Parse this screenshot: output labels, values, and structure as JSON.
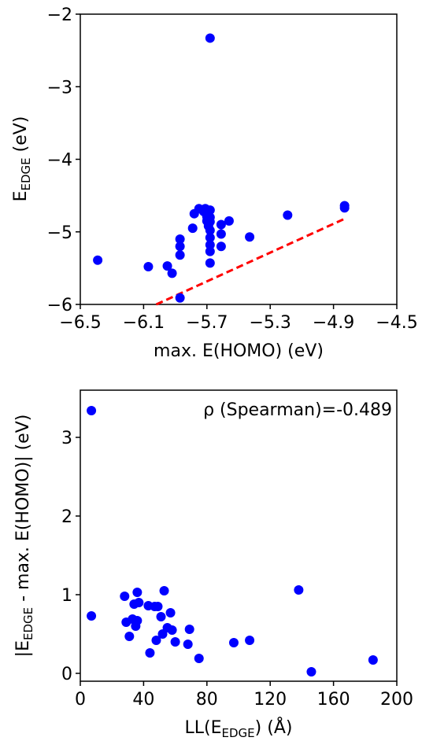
{
  "chart_data": [
    {
      "type": "scatter",
      "xlim": [
        -6.5,
        -4.5
      ],
      "ylim": [
        -6,
        -2
      ],
      "xticks": [
        "−6.5",
        "−6.1",
        "−5.7",
        "−5.3",
        "−4.9",
        "−4.5"
      ],
      "xtick_values": [
        -6.5,
        -6.1,
        -5.7,
        -5.3,
        -4.9,
        -4.5
      ],
      "yticks": [
        "−6",
        "−5",
        "−4",
        "−3",
        "−2"
      ],
      "ytick_values": [
        -6,
        -5,
        -4,
        -3,
        -2
      ],
      "xlabel": "max. E(HOMO) (eV)",
      "ylabel_main": "E",
      "ylabel_sub": "EDGE",
      "ylabel_rest": " (eV)",
      "grid": false,
      "marker_color": "#0000ff",
      "line_color": "#ff0000",
      "points": [
        {
          "x": -5.68,
          "y": -2.33
        },
        {
          "x": -6.39,
          "y": -5.39
        },
        {
          "x": -6.07,
          "y": -5.48
        },
        {
          "x": -5.95,
          "y": -5.47
        },
        {
          "x": -5.92,
          "y": -5.57
        },
        {
          "x": -5.87,
          "y": -5.91
        },
        {
          "x": -5.87,
          "y": -5.32
        },
        {
          "x": -5.87,
          "y": -5.2
        },
        {
          "x": -5.87,
          "y": -5.1
        },
        {
          "x": -5.79,
          "y": -4.95
        },
        {
          "x": -5.78,
          "y": -4.75
        },
        {
          "x": -5.75,
          "y": -4.68
        },
        {
          "x": -5.72,
          "y": -4.72
        },
        {
          "x": -5.71,
          "y": -4.68
        },
        {
          "x": -5.7,
          "y": -4.79
        },
        {
          "x": -5.7,
          "y": -4.85
        },
        {
          "x": -5.69,
          "y": -4.92
        },
        {
          "x": -5.68,
          "y": -4.7
        },
        {
          "x": -5.68,
          "y": -4.8
        },
        {
          "x": -5.68,
          "y": -4.86
        },
        {
          "x": -5.68,
          "y": -4.98
        },
        {
          "x": -5.68,
          "y": -5.08
        },
        {
          "x": -5.68,
          "y": -5.18
        },
        {
          "x": -5.68,
          "y": -5.27
        },
        {
          "x": -5.68,
          "y": -5.43
        },
        {
          "x": -5.61,
          "y": -4.9
        },
        {
          "x": -5.61,
          "y": -5.03
        },
        {
          "x": -5.61,
          "y": -5.2
        },
        {
          "x": -5.56,
          "y": -4.85
        },
        {
          "x": -5.43,
          "y": -5.07
        },
        {
          "x": -5.19,
          "y": -4.77
        },
        {
          "x": -4.83,
          "y": -4.64
        },
        {
          "x": -4.83,
          "y": -4.67
        }
      ],
      "line": [
        {
          "x": -6.02,
          "y": -6.0
        },
        {
          "x": -4.83,
          "y": -4.82
        }
      ]
    },
    {
      "type": "scatter",
      "xlim": [
        0,
        200
      ],
      "ylim": [
        -0.1,
        3.6
      ],
      "xticks": [
        "0",
        "40",
        "80",
        "120",
        "160",
        "200"
      ],
      "xtick_values": [
        0,
        40,
        80,
        120,
        160,
        200
      ],
      "yticks": [
        "0",
        "1",
        "2",
        "3"
      ],
      "ytick_values": [
        0,
        1,
        2,
        3
      ],
      "xlabel_main": "LL(E",
      "xlabel_sub": "EDGE",
      "xlabel_rest": ") (Å)",
      "ylabel_pre": "|E",
      "ylabel_sub": "EDGE",
      "ylabel_rest": " - max. E(HOMO)| (eV)",
      "annotation": "ρ (Spearman)=-0.489",
      "grid": false,
      "marker_color": "#0000ff",
      "points": [
        {
          "x": 7,
          "y": 3.34
        },
        {
          "x": 7,
          "y": 0.73
        },
        {
          "x": 28,
          "y": 0.98
        },
        {
          "x": 29,
          "y": 0.65
        },
        {
          "x": 31,
          "y": 0.47
        },
        {
          "x": 33,
          "y": 0.69
        },
        {
          "x": 34,
          "y": 0.88
        },
        {
          "x": 35,
          "y": 0.6
        },
        {
          "x": 36,
          "y": 0.67
        },
        {
          "x": 36,
          "y": 1.03
        },
        {
          "x": 37,
          "y": 0.9
        },
        {
          "x": 43,
          "y": 0.86
        },
        {
          "x": 44,
          "y": 0.26
        },
        {
          "x": 47,
          "y": 0.85
        },
        {
          "x": 48,
          "y": 0.42
        },
        {
          "x": 49,
          "y": 0.85
        },
        {
          "x": 51,
          "y": 0.72
        },
        {
          "x": 52,
          "y": 0.5
        },
        {
          "x": 53,
          "y": 1.05
        },
        {
          "x": 55,
          "y": 0.58
        },
        {
          "x": 57,
          "y": 0.77
        },
        {
          "x": 58,
          "y": 0.55
        },
        {
          "x": 60,
          "y": 0.4
        },
        {
          "x": 68,
          "y": 0.37
        },
        {
          "x": 69,
          "y": 0.56
        },
        {
          "x": 75,
          "y": 0.19
        },
        {
          "x": 97,
          "y": 0.39
        },
        {
          "x": 107,
          "y": 0.42
        },
        {
          "x": 138,
          "y": 1.06
        },
        {
          "x": 146,
          "y": 0.02
        },
        {
          "x": 185,
          "y": 0.17
        }
      ]
    }
  ]
}
